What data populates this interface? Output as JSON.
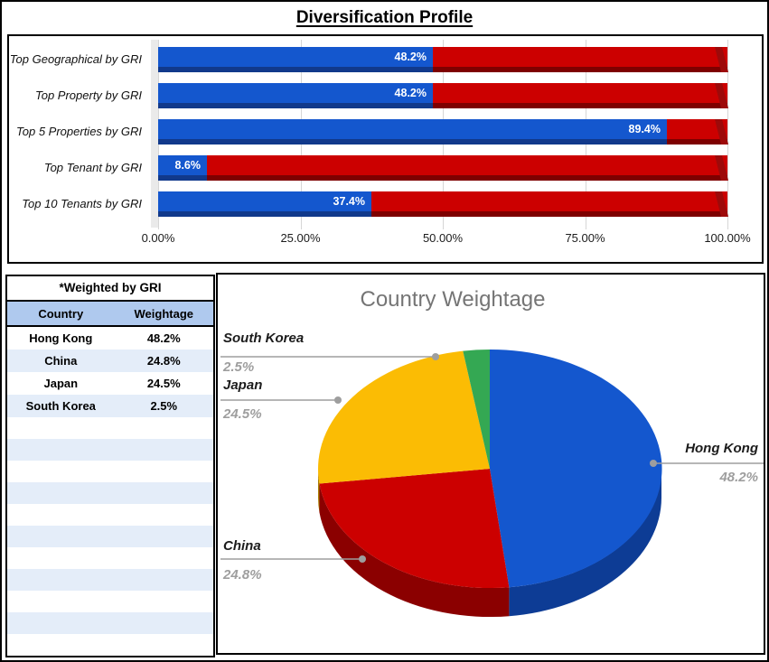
{
  "title": "Diversification Profile",
  "chart_data": [
    {
      "type": "bar",
      "title": "Diversification Profile",
      "orientation": "horizontal",
      "stacked": true,
      "categories": [
        "Top Geographical by GRI",
        "Top Property by GRI",
        "Top 5 Properties by GRI",
        "Top Tenant by GRI",
        "Top 10 Tenants by GRI"
      ],
      "series": [
        {
          "name": "Weightage",
          "values": [
            48.2,
            48.2,
            89.4,
            8.6,
            37.4
          ],
          "color": "#1457CE",
          "shadow_color": "#11398B"
        },
        {
          "name": "Remainder",
          "values": [
            51.8,
            51.8,
            10.6,
            91.4,
            62.6
          ],
          "color": "#CC0000",
          "shadow_color": "#7E0000",
          "cap_color": "#9D0A0A"
        }
      ],
      "data_labels": [
        "48.2%",
        "48.2%",
        "89.4%",
        "8.6%",
        "37.4%"
      ],
      "xlim": [
        0,
        100
      ],
      "x_tick_labels": [
        "0.00%",
        "25.00%",
        "50.00%",
        "75.00%",
        "100.00%"
      ],
      "grid": true,
      "legend": "none"
    },
    {
      "type": "pie",
      "title": "Country Weightage",
      "style": "3d",
      "start_angle_deg": 0,
      "direction": "clockwise",
      "labels": [
        "Hong Kong",
        "China",
        "Japan",
        "South Korea"
      ],
      "values": [
        48.2,
        24.8,
        24.5,
        2.5
      ],
      "value_labels": [
        "48.2%",
        "24.8%",
        "24.5%",
        "2.5%"
      ],
      "colors": [
        "#1457CE",
        "#CC0000",
        "#FBBC04",
        "#34A853"
      ],
      "rim_colors": [
        "#0D3C95",
        "#8B0000",
        "#A97B00",
        "#22703A"
      ],
      "legend": "labeled-callouts"
    }
  ],
  "table": {
    "caption": "*Weighted by GRI",
    "columns": [
      "Country",
      "Weightage"
    ],
    "rows": [
      [
        "Hong Kong",
        "48.2%"
      ],
      [
        "China",
        "24.8%"
      ],
      [
        "Japan",
        "24.5%"
      ],
      [
        "South Korea",
        "2.5%"
      ]
    ],
    "empty_row_count": 11,
    "header_bg": "#AFC9EE",
    "alt_row_bg": "#E4EDF9"
  },
  "colors": {
    "bar_blue": "#1457CE",
    "bar_red": "#CC0000",
    "pie_yellow": "#FBBC04",
    "pie_green": "#34A853",
    "label_gray": "#9E9E9E",
    "title_gray": "#757575"
  }
}
